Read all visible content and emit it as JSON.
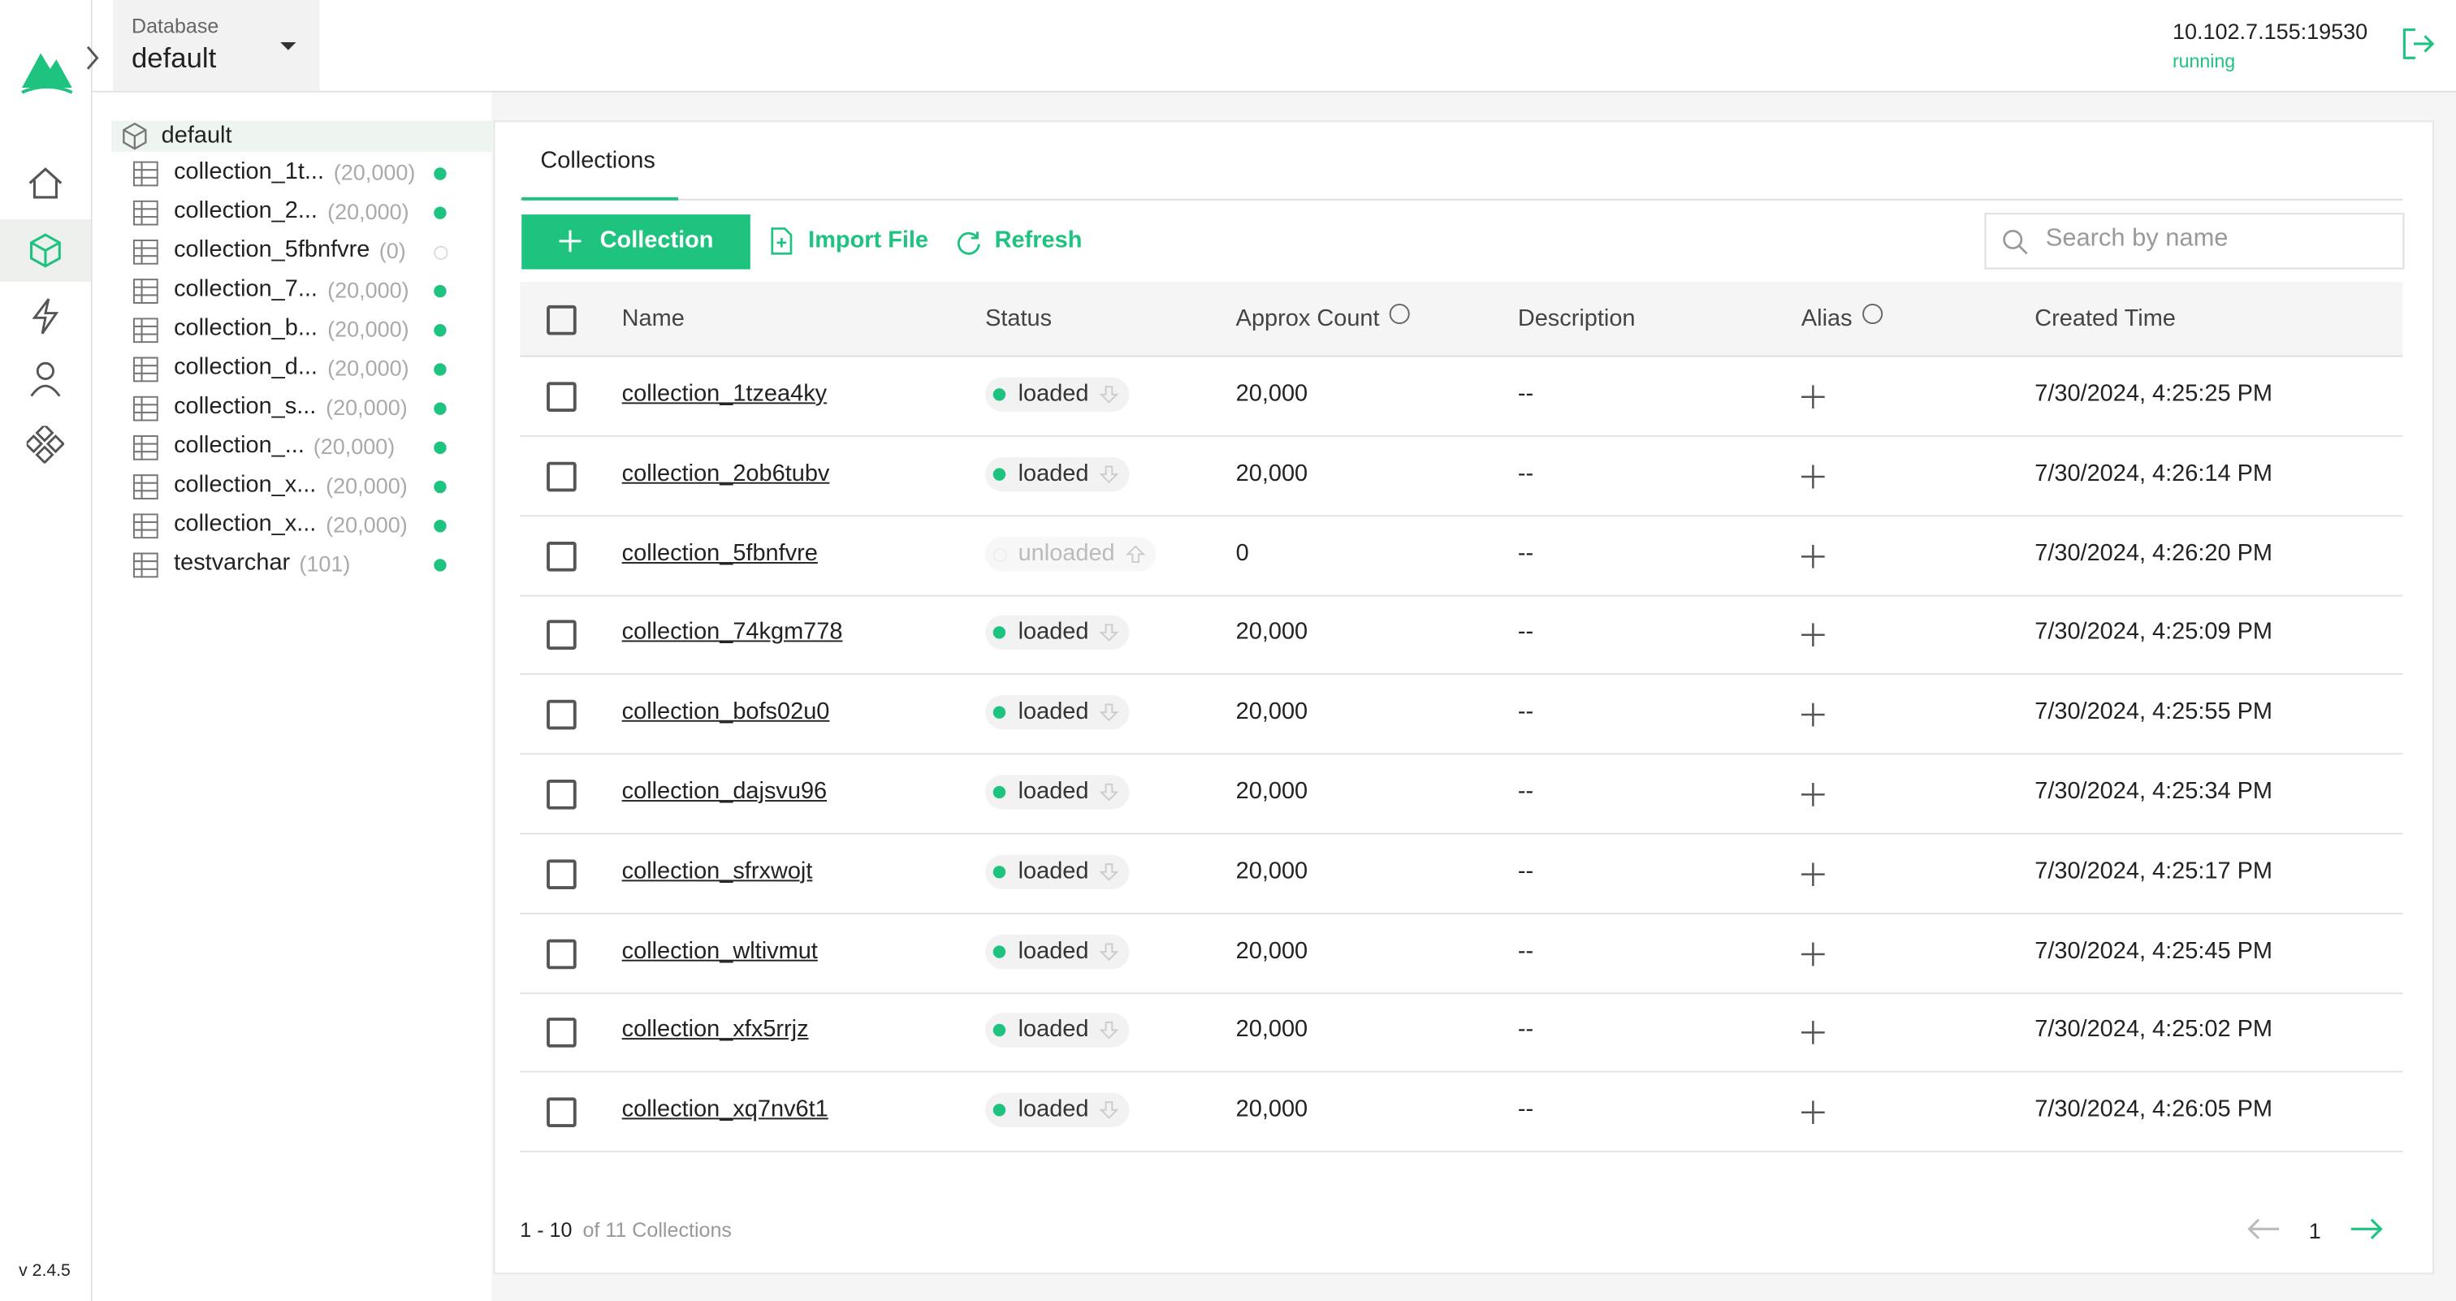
{
  "header": {
    "database_label": "Database",
    "database_name": "default",
    "server_address": "10.102.7.155:19530",
    "server_status": "running"
  },
  "sidebar": {
    "version": "v 2.4.5"
  },
  "tree": {
    "root": "default",
    "items": [
      {
        "name": "collection_1t...",
        "count": "(20,000)",
        "loaded": true
      },
      {
        "name": "collection_2...",
        "count": "(20,000)",
        "loaded": true
      },
      {
        "name": "collection_5fbnfvre",
        "count": "(0)",
        "loaded": false
      },
      {
        "name": "collection_7...",
        "count": "(20,000)",
        "loaded": true
      },
      {
        "name": "collection_b...",
        "count": "(20,000)",
        "loaded": true
      },
      {
        "name": "collection_d...",
        "count": "(20,000)",
        "loaded": true
      },
      {
        "name": "collection_s...",
        "count": "(20,000)",
        "loaded": true
      },
      {
        "name": "collection_...",
        "count": "(20,000)",
        "loaded": true
      },
      {
        "name": "collection_x...",
        "count": "(20,000)",
        "loaded": true
      },
      {
        "name": "collection_x...",
        "count": "(20,000)",
        "loaded": true
      },
      {
        "name": "testvarchar",
        "count": "(101)",
        "loaded": true
      }
    ]
  },
  "tabs": [
    "Collections"
  ],
  "toolbar": {
    "create": "Collection",
    "import": "Import File",
    "refresh": "Refresh",
    "search_placeholder": "Search by name"
  },
  "table": {
    "columns": [
      "Name",
      "Status",
      "Approx Count",
      "Description",
      "Alias",
      "Created Time"
    ],
    "rows": [
      [
        "collection_1tzea4ky",
        "loaded",
        "20,000",
        "--",
        "7/30/2024, 4:25:25 PM"
      ],
      [
        "collection_2ob6tubv",
        "loaded",
        "20,000",
        "--",
        "7/30/2024, 4:26:14 PM"
      ],
      [
        "collection_5fbnfvre",
        "unloaded",
        "0",
        "--",
        "7/30/2024, 4:26:20 PM"
      ],
      [
        "collection_74kgm778",
        "loaded",
        "20,000",
        "--",
        "7/30/2024, 4:25:09 PM"
      ],
      [
        "collection_bofs02u0",
        "loaded",
        "20,000",
        "--",
        "7/30/2024, 4:25:55 PM"
      ],
      [
        "collection_dajsvu96",
        "loaded",
        "20,000",
        "--",
        "7/30/2024, 4:25:34 PM"
      ],
      [
        "collection_sfrxwojt",
        "loaded",
        "20,000",
        "--",
        "7/30/2024, 4:25:17 PM"
      ],
      [
        "collection_wltivmut",
        "loaded",
        "20,000",
        "--",
        "7/30/2024, 4:25:45 PM"
      ],
      [
        "collection_xfx5rrjz",
        "loaded",
        "20,000",
        "--",
        "7/30/2024, 4:25:02 PM"
      ],
      [
        "collection_xq7nv6t1",
        "loaded",
        "20,000",
        "--",
        "7/30/2024, 4:26:05 PM"
      ]
    ]
  },
  "pagination": {
    "range": "1 - 10",
    "total": "of 11 Collections",
    "page": "1"
  }
}
